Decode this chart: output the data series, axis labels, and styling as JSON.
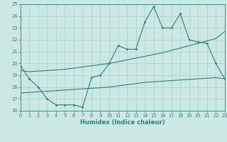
{
  "xlabel": "Humidex (Indice chaleur)",
  "x": [
    0,
    1,
    2,
    3,
    4,
    5,
    6,
    7,
    8,
    9,
    10,
    11,
    12,
    13,
    14,
    15,
    16,
    17,
    18,
    19,
    20,
    21,
    22,
    23
  ],
  "main_y": [
    19.8,
    18.7,
    18.0,
    17.0,
    16.5,
    16.5,
    16.5,
    16.3,
    18.8,
    19.0,
    20.0,
    21.5,
    21.2,
    21.2,
    23.5,
    24.8,
    23.0,
    23.0,
    24.2,
    22.0,
    21.8,
    21.7,
    20.0,
    18.7
  ],
  "upper_y": [
    19.4,
    19.3,
    19.35,
    19.4,
    19.45,
    19.5,
    19.6,
    19.7,
    19.8,
    19.9,
    20.0,
    20.15,
    20.3,
    20.45,
    20.6,
    20.75,
    20.9,
    21.1,
    21.3,
    21.5,
    21.7,
    21.9,
    22.1,
    22.7
  ],
  "lower_y": [
    17.5,
    17.55,
    17.6,
    17.65,
    17.7,
    17.75,
    17.8,
    17.85,
    17.9,
    17.95,
    18.0,
    18.1,
    18.2,
    18.3,
    18.4,
    18.45,
    18.5,
    18.55,
    18.6,
    18.65,
    18.7,
    18.75,
    18.8,
    18.7
  ],
  "xlim": [
    0,
    23
  ],
  "ylim": [
    16,
    25
  ],
  "yticks": [
    16,
    17,
    18,
    19,
    20,
    21,
    22,
    23,
    24,
    25
  ],
  "xticks": [
    0,
    1,
    2,
    3,
    4,
    5,
    6,
    7,
    8,
    9,
    10,
    11,
    12,
    13,
    14,
    15,
    16,
    17,
    18,
    19,
    20,
    21,
    22,
    23
  ],
  "line_color": "#2e7f74",
  "bg_color": "#cce8e5",
  "grid_color": "#aacfcc",
  "axis_label_color": "#2e7f74",
  "tick_color": "#2e7f74"
}
